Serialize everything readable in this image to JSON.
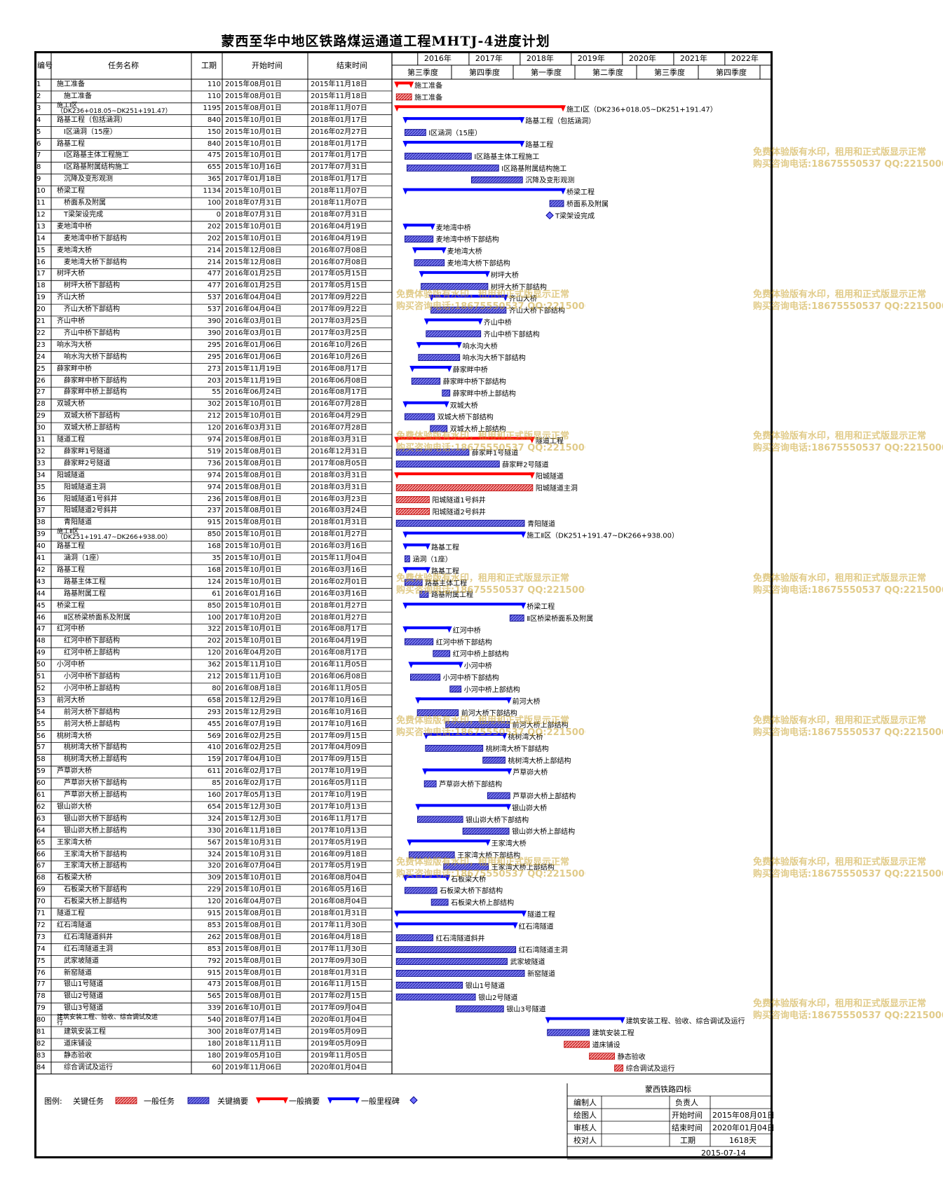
{
  "title": "蒙西至华中地区铁路煤运通道工程MHTJ-4进度计划",
  "columns": {
    "id": "编号",
    "name": "任务名称",
    "dur": "工期",
    "start": "开始时间",
    "end": "结束时间"
  },
  "timeline": {
    "years": [
      "2016年",
      "2017年",
      "2018年",
      "2019年",
      "2020年",
      "2021年",
      "2022年"
    ],
    "quarters": [
      "第三季度",
      "第四季度",
      "第一季度",
      "第二季度",
      "第三季度",
      "第四季度"
    ]
  },
  "colors": {
    "critical_task": "#f08080",
    "normal_task": "#5a5aee",
    "critical_summary": "#ff0000",
    "normal_summary": "#0000ff",
    "milestone": "#7070ff"
  },
  "chart_data": {
    "type": "gantt",
    "title": "蒙西至华中地区铁路煤运通道工程MHTJ-4进度计划",
    "x_axis": {
      "start": "2015-08-01",
      "end": "2022-12-31"
    },
    "tasks": [
      {
        "id": "1",
        "name": "施工准备",
        "duration": "110",
        "start": "2015年08月01日",
        "end": "2015年11月18日",
        "kind": "critical_summary",
        "label": "施工准备"
      },
      {
        "id": "2",
        "name": "施工准备",
        "duration": "110",
        "start": "2015年08月01日",
        "end": "2015年11月18日",
        "kind": "critical_task",
        "label": "施工准备"
      },
      {
        "id": "3",
        "name": "施工Ⅰ区（DK236+018.05~DK251+191.47）",
        "duration": "1195",
        "start": "2015年08月01日",
        "end": "2018年11月07日",
        "kind": "critical_summary",
        "label": "施工Ⅰ区（DK236+018.05~DK251+191.47）"
      },
      {
        "id": "4",
        "name": "路基工程（包括涵洞）",
        "duration": "840",
        "start": "2015年10月01日",
        "end": "2018年01月17日",
        "kind": "summary",
        "label": "路基工程（包括涵洞）"
      },
      {
        "id": "5",
        "name": "Ⅰ区涵洞（15座）",
        "duration": "150",
        "start": "2015年10月01日",
        "end": "2016年02月27日",
        "kind": "task",
        "label": "Ⅰ区涵洞（15座）"
      },
      {
        "id": "6",
        "name": "路基工程",
        "duration": "840",
        "start": "2015年10月01日",
        "end": "2018年01月17日",
        "kind": "summary",
        "label": "路基工程"
      },
      {
        "id": "7",
        "name": "Ⅰ区路基主体工程施工",
        "duration": "475",
        "start": "2015年10月01日",
        "end": "2017年01月17日",
        "kind": "task",
        "label": "Ⅰ区路基主体工程施工"
      },
      {
        "id": "8",
        "name": "Ⅰ区路基附属结构施工",
        "duration": "655",
        "start": "2015年10月16日",
        "end": "2017年07月31日",
        "kind": "task",
        "label": "Ⅰ区路基附属结构施工"
      },
      {
        "id": "9",
        "name": "沉降及变形观测",
        "duration": "365",
        "start": "2017年01月18日",
        "end": "2018年01月17日",
        "kind": "task",
        "label": "沉降及变形观测"
      },
      {
        "id": "10",
        "name": "桥梁工程",
        "duration": "1134",
        "start": "2015年10月01日",
        "end": "2018年11月07日",
        "kind": "summary",
        "label": "桥梁工程"
      },
      {
        "id": "11",
        "name": "桥面系及附属",
        "duration": "100",
        "start": "2018年07月31日",
        "end": "2018年11月07日",
        "kind": "task",
        "label": "桥面系及附属"
      },
      {
        "id": "12",
        "name": "T梁架设完成",
        "duration": "0",
        "start": "2018年07月31日",
        "end": "2018年07月31日",
        "kind": "milestone",
        "label": "T梁架设完成"
      },
      {
        "id": "13",
        "name": "麦地湾中桥",
        "duration": "202",
        "start": "2015年10月01日",
        "end": "2016年04月19日",
        "kind": "summary",
        "label": "麦地湾中桥"
      },
      {
        "id": "14",
        "name": "麦地湾中桥下部结构",
        "duration": "202",
        "start": "2015年10月01日",
        "end": "2016年04月19日",
        "kind": "task",
        "label": "麦地湾中桥下部结构"
      },
      {
        "id": "15",
        "name": "麦地湾大桥",
        "duration": "214",
        "start": "2015年12月08日",
        "end": "2016年07月08日",
        "kind": "summary",
        "label": "麦地湾大桥"
      },
      {
        "id": "16",
        "name": "麦地湾大桥下部结构",
        "duration": "214",
        "start": "2015年12月08日",
        "end": "2016年07月08日",
        "kind": "task",
        "label": "麦地湾大桥下部结构"
      },
      {
        "id": "17",
        "name": "树坪大桥",
        "duration": "477",
        "start": "2016年01月25日",
        "end": "2017年05月15日",
        "kind": "summary",
        "label": "树坪大桥"
      },
      {
        "id": "18",
        "name": "树坪大桥下部结构",
        "duration": "477",
        "start": "2016年01月25日",
        "end": "2017年05月15日",
        "kind": "task",
        "label": "树坪大桥下部结构"
      },
      {
        "id": "19",
        "name": "齐山大桥",
        "duration": "537",
        "start": "2016年04月04日",
        "end": "2017年09月22日",
        "kind": "summary",
        "label": "齐山大桥"
      },
      {
        "id": "20",
        "name": "齐山大桥下部结构",
        "duration": "537",
        "start": "2016年04月04日",
        "end": "2017年09月22日",
        "kind": "task",
        "label": "齐山大桥下部结构"
      },
      {
        "id": "21",
        "name": "齐山中桥",
        "duration": "390",
        "start": "2016年03月01日",
        "end": "2017年03月25日",
        "kind": "summary",
        "label": "齐山中桥"
      },
      {
        "id": "22",
        "name": "齐山中桥下部结构",
        "duration": "390",
        "start": "2016年03月01日",
        "end": "2017年03月25日",
        "kind": "task",
        "label": "齐山中桥下部结构"
      },
      {
        "id": "23",
        "name": "响水沟大桥",
        "duration": "295",
        "start": "2016年01月06日",
        "end": "2016年10月26日",
        "kind": "summary",
        "label": "响水沟大桥"
      },
      {
        "id": "24",
        "name": "响水沟大桥下部结构",
        "duration": "295",
        "start": "2016年01月06日",
        "end": "2016年10月26日",
        "kind": "task",
        "label": "响水沟大桥下部结构"
      },
      {
        "id": "25",
        "name": "薛家畔中桥",
        "duration": "273",
        "start": "2015年11月19日",
        "end": "2016年08月17日",
        "kind": "summary",
        "label": "薛家畔中桥"
      },
      {
        "id": "26",
        "name": "薛家畔中桥下部结构",
        "duration": "203",
        "start": "2015年11月19日",
        "end": "2016年06月08日",
        "kind": "task",
        "label": "薛家畔中桥下部结构"
      },
      {
        "id": "27",
        "name": "薛家畔中桥上部结构",
        "duration": "55",
        "start": "2016年06月24日",
        "end": "2016年08月17日",
        "kind": "task",
        "label": "薛家畔中桥上部结构"
      },
      {
        "id": "28",
        "name": "双城大桥",
        "duration": "302",
        "start": "2015年10月01日",
        "end": "2016年07月28日",
        "kind": "summary",
        "label": "双城大桥"
      },
      {
        "id": "29",
        "name": "双城大桥下部结构",
        "duration": "212",
        "start": "2015年10月01日",
        "end": "2016年04月29日",
        "kind": "task",
        "label": "双城大桥下部结构"
      },
      {
        "id": "30",
        "name": "双城大桥上部结构",
        "duration": "120",
        "start": "2016年03月31日",
        "end": "2016年07月28日",
        "kind": "task",
        "label": "双城大桥上部结构"
      },
      {
        "id": "31",
        "name": "隧道工程",
        "duration": "974",
        "start": "2015年08月01日",
        "end": "2018年03月31日",
        "kind": "critical_summary",
        "label": "隧道工程"
      },
      {
        "id": "32",
        "name": "薛家畔1号隧道",
        "duration": "519",
        "start": "2015年08月01日",
        "end": "2016年12月31日",
        "kind": "task",
        "label": "薛家畔1号隧道"
      },
      {
        "id": "33",
        "name": "薛家畔2号隧道",
        "duration": "736",
        "start": "2015年08月01日",
        "end": "2017年08月05日",
        "kind": "task",
        "label": "薛家畔2号隧道"
      },
      {
        "id": "34",
        "name": "阳城隧道",
        "duration": "974",
        "start": "2015年08月01日",
        "end": "2018年03月31日",
        "kind": "critical_summary",
        "label": "阳城隧道"
      },
      {
        "id": "35",
        "name": "阳城隧道主洞",
        "duration": "974",
        "start": "2015年08月01日",
        "end": "2018年03月31日",
        "kind": "critical_task",
        "label": "阳城隧道主洞"
      },
      {
        "id": "36",
        "name": "阳城隧道1号斜井",
        "duration": "236",
        "start": "2015年08月01日",
        "end": "2016年03月23日",
        "kind": "critical_task",
        "label": "阳城隧道1号斜井"
      },
      {
        "id": "37",
        "name": "阳城隧道2号斜井",
        "duration": "237",
        "start": "2015年08月01日",
        "end": "2016年03月24日",
        "kind": "critical_task",
        "label": "阳城隧道2号斜井"
      },
      {
        "id": "38",
        "name": "青阳隧道",
        "duration": "915",
        "start": "2015年08月01日",
        "end": "2018年01月31日",
        "kind": "task",
        "label": "青阳隧道"
      },
      {
        "id": "39",
        "name": "施工Ⅱ区（DK251+191.47~DK266+938.00）",
        "duration": "850",
        "start": "2015年10月01日",
        "end": "2018年01月27日",
        "kind": "summary",
        "label": "施工Ⅱ区（DK251+191.47~DK266+938.00）"
      },
      {
        "id": "40",
        "name": "路基工程",
        "duration": "168",
        "start": "2015年10月01日",
        "end": "2016年03月16日",
        "kind": "summary",
        "label": "路基工程"
      },
      {
        "id": "41",
        "name": "涵洞（1座）",
        "duration": "35",
        "start": "2015年10月01日",
        "end": "2015年11月04日",
        "kind": "task",
        "label": "涵洞（1座）"
      },
      {
        "id": "42",
        "name": "路基工程",
        "duration": "168",
        "start": "2015年10月01日",
        "end": "2016年03月16日",
        "kind": "summary",
        "label": "路基工程"
      },
      {
        "id": "43",
        "name": "路基主体工程",
        "duration": "124",
        "start": "2015年10月01日",
        "end": "2016年02月01日",
        "kind": "task",
        "label": "路基主体工程"
      },
      {
        "id": "44",
        "name": "路基附属工程",
        "duration": "61",
        "start": "2016年01月16日",
        "end": "2016年03月16日",
        "kind": "task",
        "label": "路基附属工程"
      },
      {
        "id": "45",
        "name": "桥梁工程",
        "duration": "850",
        "start": "2015年10月01日",
        "end": "2018年01月27日",
        "kind": "summary",
        "label": "桥梁工程"
      },
      {
        "id": "46",
        "name": "Ⅱ区桥梁桥面系及附属",
        "duration": "100",
        "start": "2017年10月20日",
        "end": "2018年01月27日",
        "kind": "task",
        "label": "Ⅱ区桥梁桥面系及附属"
      },
      {
        "id": "47",
        "name": "红河中桥",
        "duration": "322",
        "start": "2015年10月01日",
        "end": "2016年08月17日",
        "kind": "summary",
        "label": "红河中桥"
      },
      {
        "id": "48",
        "name": "红河中桥下部结构",
        "duration": "202",
        "start": "2015年10月01日",
        "end": "2016年04月19日",
        "kind": "task",
        "label": "红河中桥下部结构"
      },
      {
        "id": "49",
        "name": "红河中桥上部结构",
        "duration": "120",
        "start": "2016年04月20日",
        "end": "2016年08月17日",
        "kind": "task",
        "label": "红河中桥上部结构"
      },
      {
        "id": "50",
        "name": "小河中桥",
        "duration": "362",
        "start": "2015年11月10日",
        "end": "2016年11月05日",
        "kind": "summary",
        "label": "小河中桥"
      },
      {
        "id": "51",
        "name": "小河中桥下部结构",
        "duration": "212",
        "start": "2015年11月10日",
        "end": "2016年06月08日",
        "kind": "task",
        "label": "小河中桥下部结构"
      },
      {
        "id": "52",
        "name": "小河中桥上部结构",
        "duration": "80",
        "start": "2016年08月18日",
        "end": "2016年11月05日",
        "kind": "task",
        "label": "小河中桥上部结构"
      },
      {
        "id": "53",
        "name": "前河大桥",
        "duration": "658",
        "start": "2015年12月29日",
        "end": "2017年10月16日",
        "kind": "summary",
        "label": "前河大桥"
      },
      {
        "id": "54",
        "name": "前河大桥下部结构",
        "duration": "293",
        "start": "2015年12月29日",
        "end": "2016年10月16日",
        "kind": "task",
        "label": "前河大桥下部结构"
      },
      {
        "id": "55",
        "name": "前河大桥上部结构",
        "duration": "455",
        "start": "2016年07月19日",
        "end": "2017年10月16日",
        "kind": "task",
        "label": "前河大桥上部结构"
      },
      {
        "id": "56",
        "name": "桃树湾大桥",
        "duration": "569",
        "start": "2016年02月25日",
        "end": "2017年09月15日",
        "kind": "summary",
        "label": "桃树湾大桥"
      },
      {
        "id": "57",
        "name": "桃树湾大桥下部结构",
        "duration": "410",
        "start": "2016年02月25日",
        "end": "2017年04月09日",
        "kind": "task",
        "label": "桃树湾大桥下部结构"
      },
      {
        "id": "58",
        "name": "桃树湾大桥上部结构",
        "duration": "159",
        "start": "2017年04月10日",
        "end": "2017年09月15日",
        "kind": "task",
        "label": "桃树湾大桥上部结构"
      },
      {
        "id": "59",
        "name": "芦草峁大桥",
        "duration": "611",
        "start": "2016年02月17日",
        "end": "2017年10月19日",
        "kind": "summary",
        "label": "芦草峁大桥"
      },
      {
        "id": "60",
        "name": "芦草峁大桥下部结构",
        "duration": "85",
        "start": "2016年02月17日",
        "end": "2016年05月11日",
        "kind": "task",
        "label": "芦草峁大桥下部结构"
      },
      {
        "id": "61",
        "name": "芦草峁大桥上部结构",
        "duration": "160",
        "start": "2017年05月13日",
        "end": "2017年10月19日",
        "kind": "task",
        "label": "芦草峁大桥上部结构"
      },
      {
        "id": "62",
        "name": "银山峁大桥",
        "duration": "654",
        "start": "2015年12月30日",
        "end": "2017年10月13日",
        "kind": "summary",
        "label": "银山峁大桥"
      },
      {
        "id": "63",
        "name": "银山峁大桥下部结构",
        "duration": "324",
        "start": "2015年12月30日",
        "end": "2016年11月17日",
        "kind": "task",
        "label": "银山峁大桥下部结构"
      },
      {
        "id": "64",
        "name": "银山峁大桥上部结构",
        "duration": "330",
        "start": "2016年11月18日",
        "end": "2017年10月13日",
        "kind": "task",
        "label": "银山峁大桥上部结构"
      },
      {
        "id": "65",
        "name": "王家湾大桥",
        "duration": "567",
        "start": "2015年10月31日",
        "end": "2017年05月19日",
        "kind": "summary",
        "label": "王家湾大桥"
      },
      {
        "id": "66",
        "name": "王家湾大桥下部结构",
        "duration": "324",
        "start": "2015年10月31日",
        "end": "2016年09月18日",
        "kind": "task",
        "label": "王家湾大桥下部结构"
      },
      {
        "id": "67",
        "name": "王家湾大桥上部结构",
        "duration": "320",
        "start": "2016年07月04日",
        "end": "2017年05月19日",
        "kind": "task",
        "label": "王家湾大桥上部结构"
      },
      {
        "id": "68",
        "name": "石板梁大桥",
        "duration": "309",
        "start": "2015年10月01日",
        "end": "2016年08月04日",
        "kind": "summary",
        "label": "石板梁大桥"
      },
      {
        "id": "69",
        "name": "石板梁大桥下部结构",
        "duration": "229",
        "start": "2015年10月01日",
        "end": "2016年05月16日",
        "kind": "task",
        "label": "石板梁大桥下部结构"
      },
      {
        "id": "70",
        "name": "石板梁大桥上部结构",
        "duration": "120",
        "start": "2016年04月07日",
        "end": "2016年08月04日",
        "kind": "task",
        "label": "石板梁大桥上部结构"
      },
      {
        "id": "71",
        "name": "隧道工程",
        "duration": "915",
        "start": "2015年08月01日",
        "end": "2018年01月31日",
        "kind": "summary",
        "label": "隧道工程"
      },
      {
        "id": "72",
        "name": "红石湾隧道",
        "duration": "853",
        "start": "2015年08月01日",
        "end": "2017年11月30日",
        "kind": "summary",
        "label": "红石湾隧道"
      },
      {
        "id": "73",
        "name": "红石湾隧道斜井",
        "duration": "262",
        "start": "2015年08月01日",
        "end": "2016年04月18日",
        "kind": "task",
        "label": "红石湾隧道斜井"
      },
      {
        "id": "74",
        "name": "红石湾隧道主洞",
        "duration": "853",
        "start": "2015年08月01日",
        "end": "2017年11月30日",
        "kind": "task",
        "label": "红石湾隧道主洞"
      },
      {
        "id": "75",
        "name": "武家坡隧道",
        "duration": "792",
        "start": "2015年08月01日",
        "end": "2017年09月30日",
        "kind": "task",
        "label": "武家坡隧道"
      },
      {
        "id": "76",
        "name": "新窑隧道",
        "duration": "915",
        "start": "2015年08月01日",
        "end": "2018年01月31日",
        "kind": "task",
        "label": "新窑隧道"
      },
      {
        "id": "77",
        "name": "银山1号隧道",
        "duration": "473",
        "start": "2015年08月01日",
        "end": "2016年11月15日",
        "kind": "task",
        "label": "银山1号隧道"
      },
      {
        "id": "78",
        "name": "银山2号隧道",
        "duration": "565",
        "start": "2015年08月01日",
        "end": "2017年02月15日",
        "kind": "task",
        "label": "银山2号隧道"
      },
      {
        "id": "79",
        "name": "银山3号隧道",
        "duration": "339",
        "start": "2016年10月01日",
        "end": "2017年09月04日",
        "kind": "task",
        "label": "银山3号隧道"
      },
      {
        "id": "80",
        "name": "建筑安装工程、验收、综合调试及运行",
        "duration": "540",
        "start": "2018年07月14日",
        "end": "2020年01月04日",
        "kind": "summary",
        "label": "建筑安装工程、验收、综合调试及运行"
      },
      {
        "id": "81",
        "name": "建筑安装工程",
        "duration": "300",
        "start": "2018年07月14日",
        "end": "2019年05月09日",
        "kind": "task",
        "label": "建筑安装工程"
      },
      {
        "id": "82",
        "name": "道床铺设",
        "duration": "180",
        "start": "2018年11月11日",
        "end": "2019年05月09日",
        "kind": "critical_task",
        "label": "道床铺设"
      },
      {
        "id": "83",
        "name": "静态验收",
        "duration": "180",
        "start": "2019年05月10日",
        "end": "2019年11月05日",
        "kind": "critical_task",
        "label": "静态验收"
      },
      {
        "id": "84",
        "name": "综合调试及运行",
        "duration": "60",
        "start": "2019年11月06日",
        "end": "2020年01月04日",
        "kind": "critical_task",
        "label": "综合调试及运行"
      }
    ]
  },
  "legend": {
    "label": "图例:",
    "items": [
      "关键任务",
      "一般任务",
      "关键摘要",
      "一般摘要",
      "一般里程碑"
    ]
  },
  "info": {
    "org": "蒙西铁路四标",
    "editor_label": "编制人",
    "owner_label": "负责人",
    "drawer_label": "绘图人",
    "start_label": "开始时间",
    "start_value": "2015年08月01日",
    "checker_label": "审核人",
    "end_label": "结束时间",
    "end_value": "2020年01月04日",
    "proof_label": "校对人",
    "duration_label": "工期",
    "duration_value": "1618天",
    "date": "2015-07-14"
  },
  "watermark": {
    "line1": "免费体验版有水印，租用和正式版显示正常",
    "line2": "购买咨询电话:18675550537 QQ:22150066"
  }
}
